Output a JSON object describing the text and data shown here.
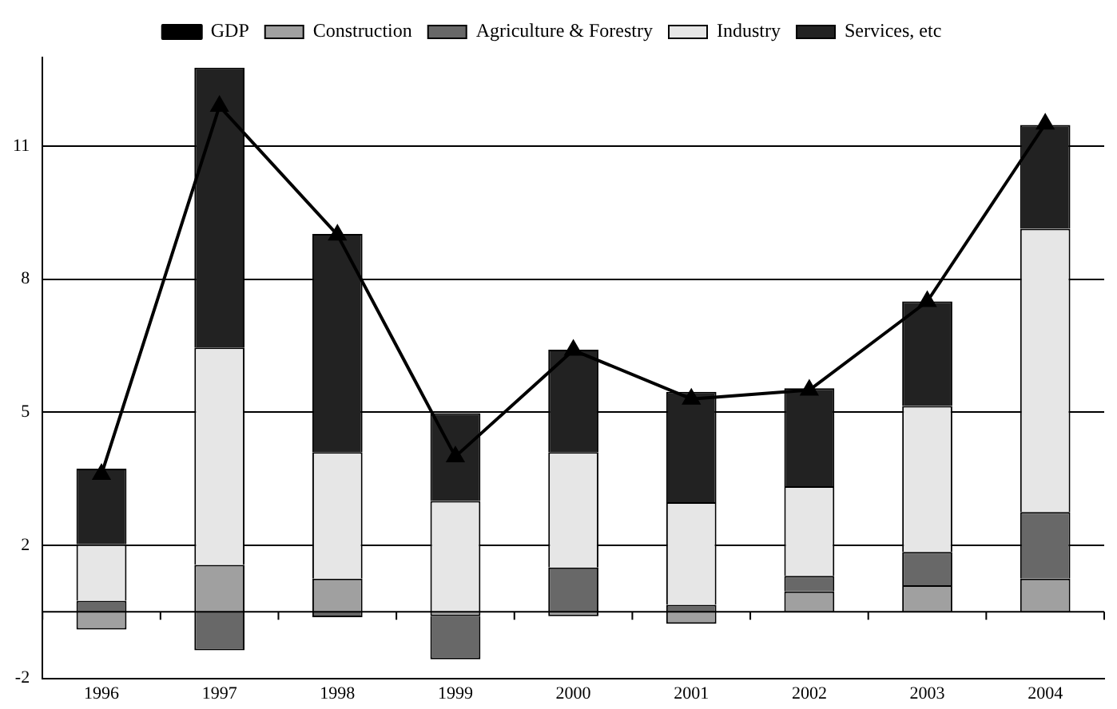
{
  "chart_data": {
    "type": "bar",
    "stacked": true,
    "categories": [
      "1996",
      "1997",
      "1998",
      "1999",
      "2000",
      "2001",
      "2002",
      "2003",
      "2004"
    ],
    "series": [
      {
        "name": "Construction",
        "color": "#a0a0a0",
        "values": [
          -0.4,
          1.06,
          0.75,
          -0.1,
          -0.1,
          -0.27,
          0.46,
          0.6,
          0.75
        ]
      },
      {
        "name": "Agriculture & Forestry",
        "color": "#686868",
        "values": [
          0.25,
          -0.87,
          -0.12,
          -0.97,
          1.0,
          0.16,
          0.35,
          0.75,
          1.5
        ]
      },
      {
        "name": "Industry",
        "color": "#e6e6e6",
        "values": [
          1.27,
          4.9,
          2.85,
          2.5,
          2.6,
          2.31,
          2.02,
          3.29,
          6.39
        ]
      },
      {
        "name": "Services, etc",
        "color": "#222222",
        "values": [
          1.71,
          6.31,
          4.92,
          1.98,
          2.31,
          2.49,
          2.21,
          2.36,
          2.34
        ]
      },
      {
        "name": "GDP",
        "type": "line",
        "color": "#000000",
        "marker": "triangle",
        "values": [
          3.1,
          11.4,
          8.5,
          3.5,
          5.9,
          4.8,
          5.0,
          7.0,
          11.0
        ]
      }
    ],
    "ylim": [
      -1.5,
      12.5
    ],
    "yticks": [
      {
        "value": -1.5,
        "label": "-2"
      },
      {
        "value": 1.5,
        "label": "2"
      },
      {
        "value": 4.5,
        "label": "5"
      },
      {
        "value": 7.5,
        "label": "8"
      },
      {
        "value": 10.5,
        "label": "11"
      }
    ],
    "grid": "y",
    "legend": "top"
  }
}
